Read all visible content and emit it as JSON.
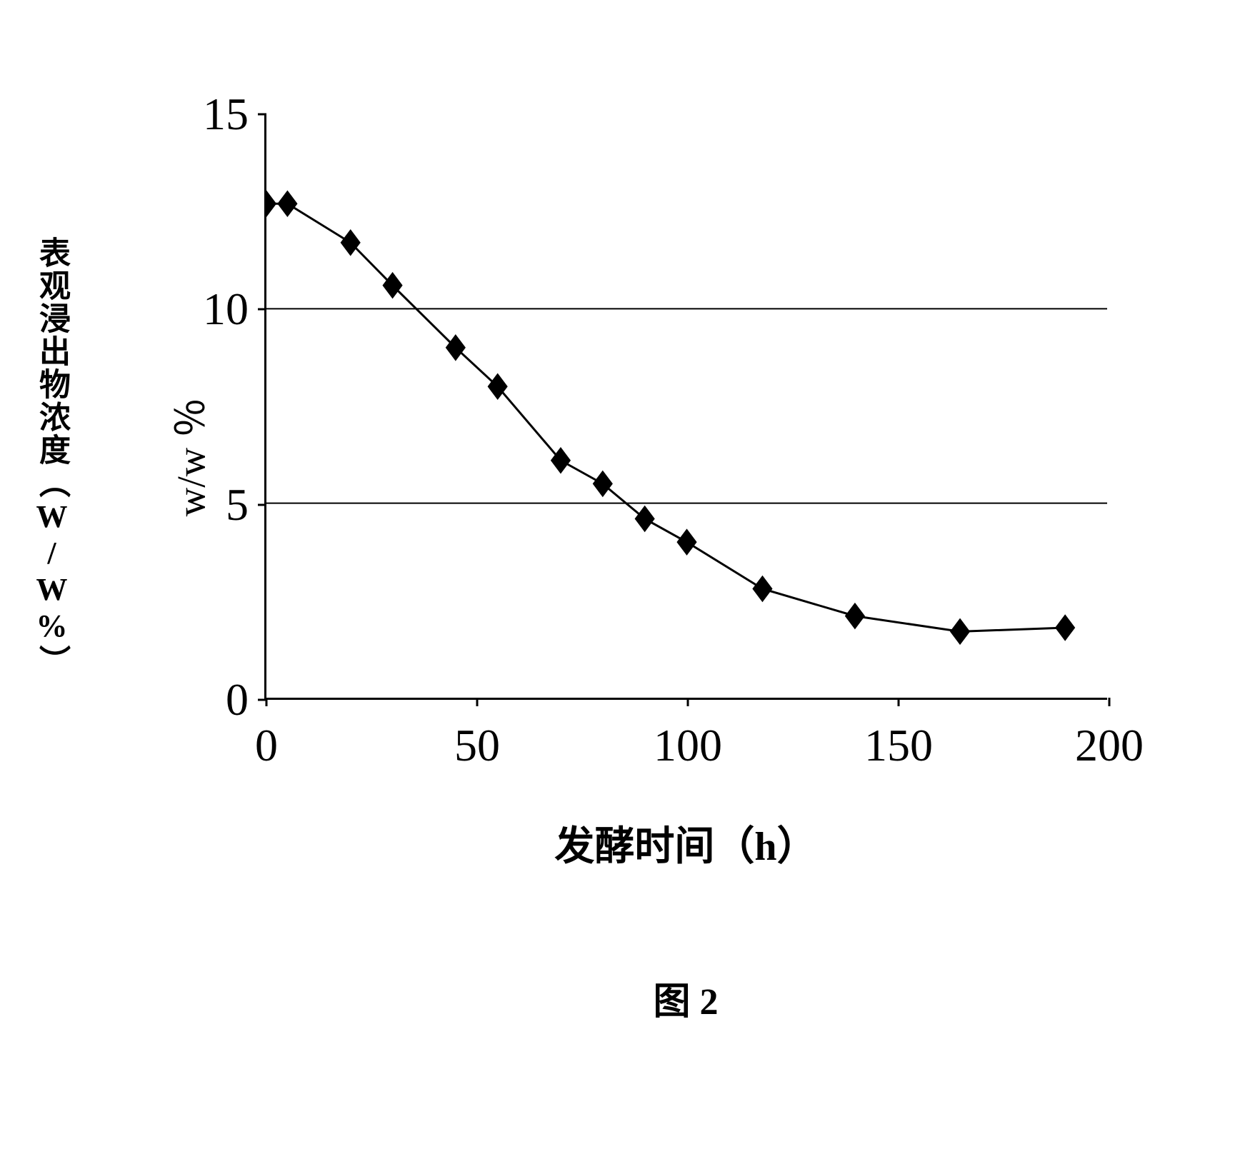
{
  "chart": {
    "type": "line",
    "y_axis_label_outer": "表观浸出物浓度（W/W%）",
    "y_axis_label_inner": "w/w ％",
    "x_axis_label": "发酵时间（h）",
    "figure_caption": "图 2",
    "xlim": [
      0,
      200
    ],
    "ylim": [
      0,
      15
    ],
    "x_ticks": [
      0,
      50,
      100,
      150,
      200
    ],
    "y_ticks": [
      0,
      5,
      10,
      15
    ],
    "y_gridlines": [
      5,
      10
    ],
    "background_color": "#ffffff",
    "axis_color": "#000000",
    "grid_color": "#000000",
    "line_color": "#000000",
    "marker_color": "#000000",
    "marker_style": "diamond",
    "marker_size": 18,
    "line_width": 3,
    "axis_fontsize": 64,
    "label_fontsize": 56,
    "caption_fontsize": 52,
    "data_points": [
      {
        "x": 0,
        "y": 12.7
      },
      {
        "x": 5,
        "y": 12.7
      },
      {
        "x": 20,
        "y": 11.7
      },
      {
        "x": 30,
        "y": 10.6
      },
      {
        "x": 45,
        "y": 9.0
      },
      {
        "x": 55,
        "y": 8.0
      },
      {
        "x": 70,
        "y": 6.1
      },
      {
        "x": 80,
        "y": 5.5
      },
      {
        "x": 90,
        "y": 4.6
      },
      {
        "x": 100,
        "y": 4.0
      },
      {
        "x": 118,
        "y": 2.8
      },
      {
        "x": 140,
        "y": 2.1
      },
      {
        "x": 165,
        "y": 1.7
      },
      {
        "x": 190,
        "y": 1.8
      }
    ]
  }
}
